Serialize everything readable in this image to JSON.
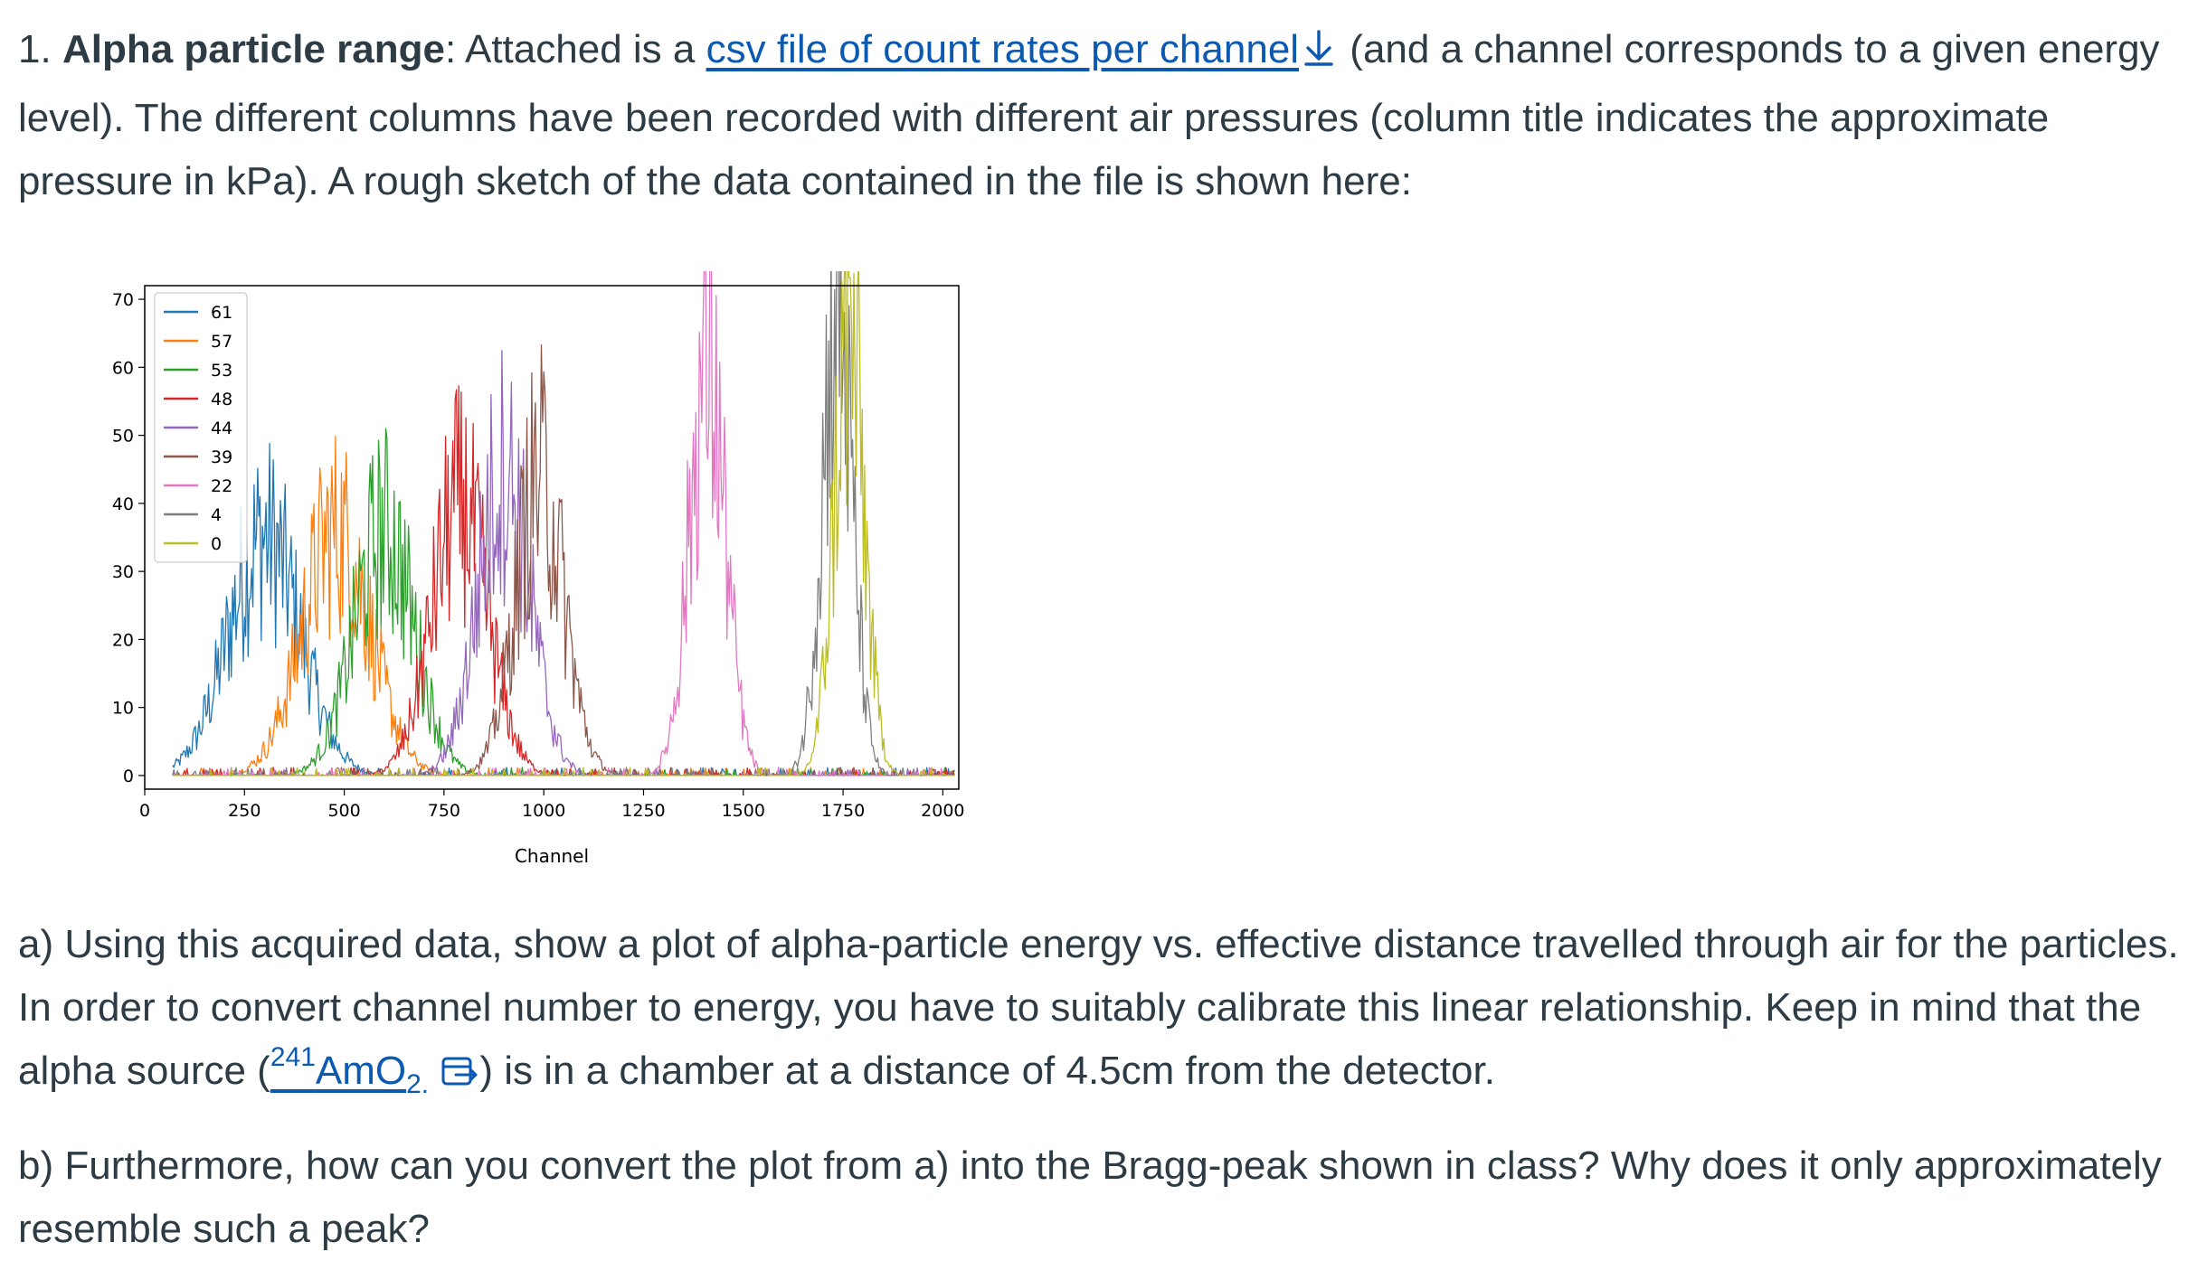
{
  "question1": {
    "number": "1.",
    "title": "Alpha particle range",
    "colon": ":",
    "text_before_link": " Attached is a ",
    "link_text": "csv file of count rates per channel",
    "text_after_link": " (and a channel corresponds to a given energy level). The different columns have been recorded with different air pressures (column title indicates the approximate pressure in kPa). A rough sketch of the data contained in the file is shown here:"
  },
  "part_a": {
    "text_before": "a) Using this acquired data, show a plot of alpha-particle energy vs. effective distance travelled through air for the particles. In order to convert channel number to energy, you have to suitably calibrate this linear relationship. Keep in mind that the alpha source (",
    "link_sup": "241",
    "link_main": "AmO",
    "link_sub": "2.",
    "text_after": ") is in a chamber at a distance of 4.5cm from the detector."
  },
  "part_b": {
    "text": "b) Furthermore, how can you convert the plot from a) into the Bragg-peak shown in class? Why does it only approximately resemble such a peak?"
  },
  "icons": {
    "download": "download-arrow-icon",
    "external": "external-link-icon"
  },
  "chart_data": {
    "type": "line",
    "xlabel": "Channel",
    "ylabel": "",
    "xlim": [
      0,
      2040
    ],
    "ylim": [
      -2,
      72
    ],
    "xticks": [
      0,
      250,
      500,
      750,
      1000,
      1250,
      1500,
      1750,
      2000
    ],
    "yticks": [
      0,
      10,
      20,
      30,
      40,
      50,
      60,
      70
    ],
    "legend_position": "top-left",
    "grid": false,
    "series": [
      {
        "name": "61",
        "color": "#1f77b4",
        "peak_channel": 300,
        "peak_count": 35,
        "width": 90
      },
      {
        "name": "57",
        "color": "#ff7f0e",
        "peak_channel": 480,
        "peak_count": 36,
        "width": 85
      },
      {
        "name": "53",
        "color": "#2ca02c",
        "peak_channel": 600,
        "peak_count": 36,
        "width": 75
      },
      {
        "name": "48",
        "color": "#d62728",
        "peak_channel": 790,
        "peak_count": 40,
        "width": 70
      },
      {
        "name": "44",
        "color": "#9467bd",
        "peak_channel": 900,
        "peak_count": 45,
        "width": 65
      },
      {
        "name": "39",
        "color": "#8c564b",
        "peak_channel": 990,
        "peak_count": 44,
        "width": 60
      },
      {
        "name": "22",
        "color": "#e377c2",
        "peak_channel": 1410,
        "peak_count": 60,
        "width": 45
      },
      {
        "name": "4",
        "color": "#7f7f7f",
        "peak_channel": 1735,
        "peak_count": 68,
        "width": 38
      },
      {
        "name": "0",
        "color": "#bcbd22",
        "peak_channel": 1765,
        "peak_count": 64,
        "width": 38
      }
    ]
  }
}
